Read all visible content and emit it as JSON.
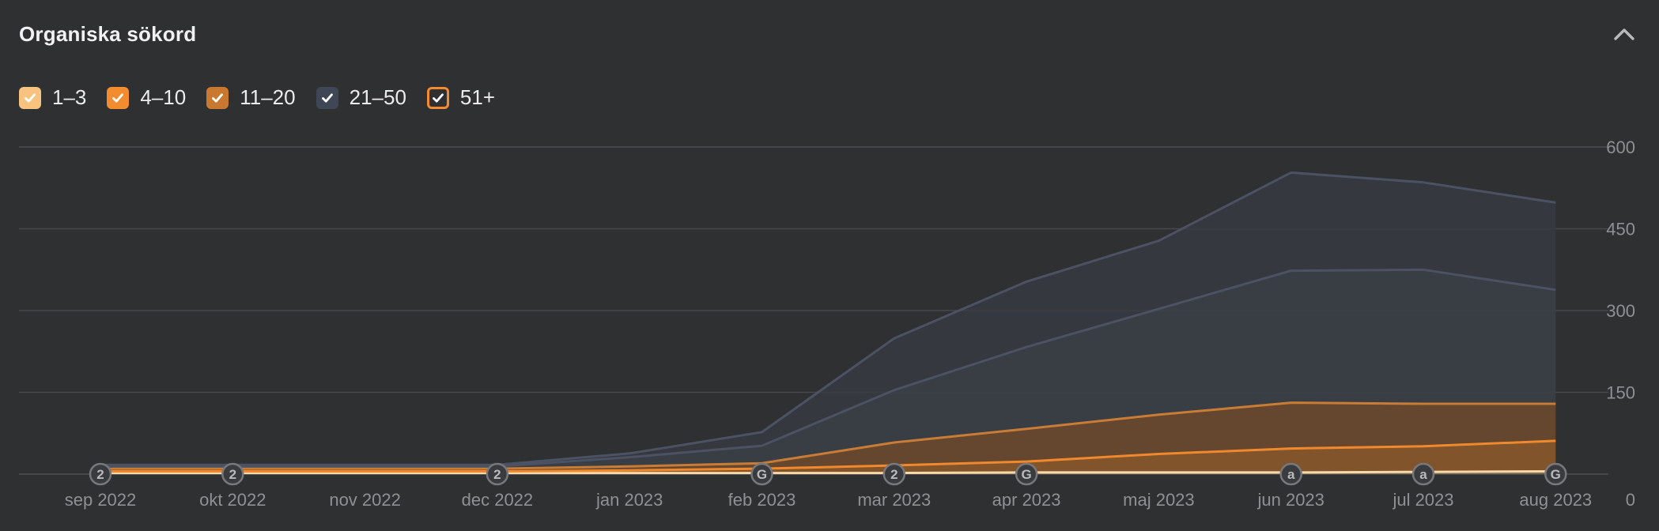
{
  "panel": {
    "title": "Organiska sökord"
  },
  "icons": {
    "collapse": "chevron-up-icon",
    "checkbox": "check-icon"
  },
  "legend": [
    {
      "label": "1–3",
      "color": "#f7c37f",
      "checked": true,
      "style": "filled"
    },
    {
      "label": "4–10",
      "color": "#f28c2e",
      "checked": true,
      "style": "filled"
    },
    {
      "label": "11–20",
      "color": "#c9782f",
      "checked": true,
      "style": "filled"
    },
    {
      "label": "21–50",
      "color": "#3f4656",
      "checked": true,
      "style": "filled"
    },
    {
      "label": "51+",
      "color": "#f28c2e",
      "checked": true,
      "style": "outlined"
    }
  ],
  "chart_data": {
    "type": "area",
    "stacked": true,
    "title": "Organiska sökord",
    "x": [
      "sep 2022",
      "okt 2022",
      "nov 2022",
      "dec 2022",
      "jan 2023",
      "feb 2023",
      "mar 2023",
      "apr 2023",
      "maj 2023",
      "jun 2023",
      "jul 2023",
      "aug 2023"
    ],
    "y_axis": {
      "position": "right",
      "ticks": [
        0,
        150,
        300,
        450,
        600
      ],
      "ylim": [
        0,
        600
      ]
    },
    "grid": true,
    "series": [
      {
        "name": "1–3",
        "color": "#f7c37f",
        "values": [
          2,
          2,
          2,
          2,
          2,
          2,
          2,
          3,
          3,
          3,
          4,
          5
        ]
      },
      {
        "name": "4–10",
        "color": "#f28c2e",
        "values": [
          3,
          3,
          3,
          3,
          5,
          8,
          14,
          20,
          34,
          44,
          47,
          56
        ]
      },
      {
        "name": "11–20",
        "color": "#c9782f",
        "values": [
          5,
          5,
          5,
          5,
          7,
          10,
          42,
          60,
          72,
          84,
          78,
          68
        ]
      },
      {
        "name": "21–50",
        "color": "#3f4656",
        "values": [
          4,
          4,
          4,
          4,
          17,
          32,
          96,
          150,
          194,
          242,
          246,
          209
        ]
      },
      {
        "name": "51+",
        "color": "#4a5160",
        "values": [
          3,
          3,
          3,
          3,
          7,
          25,
          95,
          120,
          125,
          180,
          160,
          160
        ]
      }
    ],
    "annotations": [
      {
        "x": "sep 2022",
        "label": "2"
      },
      {
        "x": "okt 2022",
        "label": "2"
      },
      {
        "x": "dec 2022",
        "label": "2"
      },
      {
        "x": "feb 2023",
        "label": "G"
      },
      {
        "x": "mar 2023",
        "label": "2"
      },
      {
        "x": "apr 2023",
        "label": "G"
      },
      {
        "x": "jun 2023",
        "label": "a"
      },
      {
        "x": "jul 2023",
        "label": "a"
      },
      {
        "x": "aug 2023",
        "label": "G"
      }
    ]
  }
}
